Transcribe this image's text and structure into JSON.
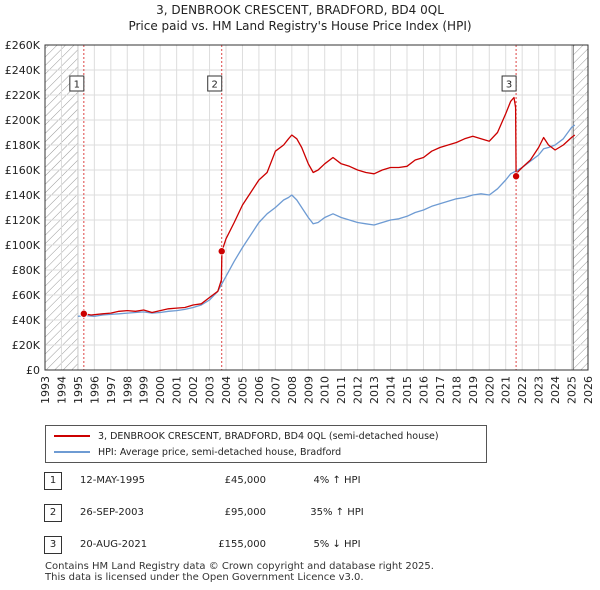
{
  "title_line1": "3, DENBROOK CRESCENT, BRADFORD, BD4 0QL",
  "title_line2": "Price paid vs. HM Land Registry's House Price Index (HPI)",
  "colors": {
    "red": "#cc0000",
    "blue": "#6e9bd3",
    "grid": "#dddddd",
    "hatch": "#999999",
    "shade": "#e8eef7"
  },
  "chart_data": {
    "type": "line",
    "title": "3, DENBROOK CRESCENT, BRADFORD, BD4 0QL — Price paid vs. HM Land Registry's House Price Index (HPI)",
    "xlabel": "",
    "ylabel": "",
    "xlim": [
      1993,
      2026
    ],
    "ylim": [
      0,
      260000
    ],
    "x_ticks": [
      1993,
      1994,
      1995,
      1996,
      1997,
      1998,
      1999,
      2000,
      2001,
      2002,
      2003,
      2004,
      2005,
      2006,
      2007,
      2008,
      2009,
      2010,
      2011,
      2012,
      2013,
      2014,
      2015,
      2016,
      2017,
      2018,
      2019,
      2020,
      2021,
      2022,
      2023,
      2024,
      2025,
      2026
    ],
    "y_ticks": [
      0,
      20000,
      40000,
      60000,
      80000,
      100000,
      120000,
      140000,
      160000,
      180000,
      200000,
      220000,
      240000,
      260000
    ],
    "y_tick_labels": [
      "£0",
      "£20K",
      "£40K",
      "£60K",
      "£80K",
      "£100K",
      "£120K",
      "£140K",
      "£160K",
      "£180K",
      "£200K",
      "£220K",
      "£240K",
      "£260K"
    ],
    "hatched_before": 1995.0,
    "hatched_after": 2025.1,
    "series": [
      {
        "name": "3, DENBROOK CRESCENT, BRADFORD, BD4 0QL (semi-detached house)",
        "color": "#cc0000",
        "x": [
          1995.36,
          1995.8,
          1996.5,
          1997.0,
          1997.5,
          1998.0,
          1998.5,
          1999.0,
          1999.5,
          2000.0,
          2000.5,
          2001.0,
          2001.5,
          2002.0,
          2002.5,
          2003.0,
          2003.5,
          2003.72,
          2003.75,
          2004.0,
          2004.5,
          2005.0,
          2005.5,
          2006.0,
          2006.5,
          2007.0,
          2007.5,
          2007.8,
          2008.0,
          2008.3,
          2008.6,
          2009.0,
          2009.3,
          2009.6,
          2010.0,
          2010.5,
          2011.0,
          2011.5,
          2012.0,
          2012.5,
          2013.0,
          2013.5,
          2014.0,
          2014.5,
          2015.0,
          2015.5,
          2016.0,
          2016.5,
          2017.0,
          2017.5,
          2018.0,
          2018.5,
          2019.0,
          2019.5,
          2020.0,
          2020.5,
          2021.0,
          2021.3,
          2021.5,
          2021.6,
          2021.63,
          2021.7,
          2022.0,
          2022.5,
          2023.0,
          2023.3,
          2023.6,
          2024.0,
          2024.5,
          2025.0,
          2025.2
        ],
        "values": [
          45000,
          44000,
          45000,
          45500,
          47000,
          47500,
          47000,
          48000,
          46000,
          47500,
          49000,
          49500,
          50000,
          52000,
          53000,
          58000,
          63000,
          72000,
          95000,
          105000,
          118000,
          132000,
          142000,
          152000,
          158000,
          175000,
          180000,
          185000,
          188000,
          185000,
          178000,
          165000,
          158000,
          160000,
          165000,
          170000,
          165000,
          163000,
          160000,
          158000,
          157000,
          160000,
          162000,
          162000,
          163000,
          168000,
          170000,
          175000,
          178000,
          180000,
          182000,
          185000,
          187000,
          185000,
          183000,
          190000,
          205000,
          215000,
          218000,
          210000,
          155000,
          158000,
          162000,
          168000,
          178000,
          186000,
          180000,
          176000,
          180000,
          186000,
          188000
        ]
      },
      {
        "name": "HPI: Average price, semi-detached house, Bradford",
        "color": "#6e9bd3",
        "x": [
          1995.0,
          1995.5,
          1996.0,
          1996.5,
          1997.0,
          1997.5,
          1998.0,
          1998.5,
          1999.0,
          1999.5,
          2000.0,
          2000.5,
          2001.0,
          2001.5,
          2002.0,
          2002.5,
          2003.0,
          2003.5,
          2004.0,
          2004.5,
          2005.0,
          2005.5,
          2006.0,
          2006.5,
          2007.0,
          2007.5,
          2007.8,
          2008.0,
          2008.3,
          2008.6,
          2009.0,
          2009.3,
          2009.6,
          2010.0,
          2010.5,
          2011.0,
          2011.5,
          2012.0,
          2012.5,
          2013.0,
          2013.5,
          2014.0,
          2014.5,
          2015.0,
          2015.5,
          2016.0,
          2016.5,
          2017.0,
          2017.5,
          2018.0,
          2018.5,
          2019.0,
          2019.5,
          2020.0,
          2020.5,
          2021.0,
          2021.3,
          2021.6,
          2022.0,
          2022.5,
          2023.0,
          2023.3,
          2023.6,
          2024.0,
          2024.5,
          2025.0,
          2025.2
        ],
        "values": [
          43000,
          43500,
          43000,
          44000,
          44500,
          45000,
          45500,
          46000,
          46500,
          45500,
          46000,
          47000,
          47500,
          48500,
          50000,
          52000,
          56000,
          63000,
          75000,
          87000,
          98000,
          108000,
          118000,
          125000,
          130000,
          136000,
          138000,
          140000,
          136000,
          130000,
          122000,
          117000,
          118000,
          122000,
          125000,
          122000,
          120000,
          118000,
          117000,
          116000,
          118000,
          120000,
          121000,
          123000,
          126000,
          128000,
          131000,
          133000,
          135000,
          137000,
          138000,
          140000,
          141000,
          140000,
          145000,
          152000,
          157000,
          159000,
          162000,
          167000,
          172000,
          177000,
          178000,
          180000,
          185000,
          194000,
          196000
        ]
      }
    ],
    "sales": [
      {
        "num": "1",
        "x": 1995.36,
        "value": 45000,
        "date": "12-MAY-1995",
        "price": "£45,000",
        "hpi": "4% ↑ HPI"
      },
      {
        "num": "2",
        "x": 2003.74,
        "value": 95000,
        "date": "26-SEP-2003",
        "price": "£95,000",
        "hpi": "35% ↑ HPI"
      },
      {
        "num": "3",
        "x": 2021.63,
        "value": 155000,
        "date": "20-AUG-2021",
        "price": "£155,000",
        "hpi": "5% ↓ HPI"
      }
    ]
  },
  "legend": {
    "red_label": "3, DENBROOK CRESCENT, BRADFORD, BD4 0QL (semi-detached house)",
    "blue_label": "HPI: Average price, semi-detached house, Bradford"
  },
  "footer": {
    "line1": "Contains HM Land Registry data © Crown copyright and database right 2025.",
    "line2": "This data is licensed under the Open Government Licence v3.0."
  }
}
